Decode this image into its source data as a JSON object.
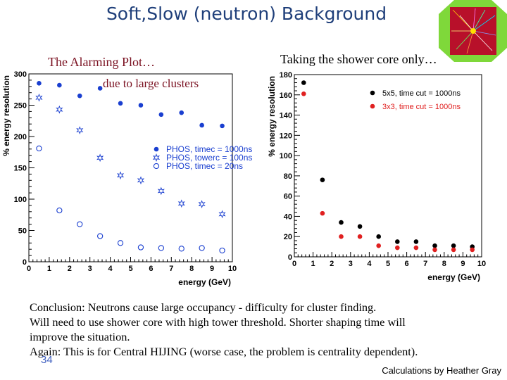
{
  "slide": {
    "title": "Soft,Slow (neutron) Background",
    "left_caption_1": "The Alarming Plot…",
    "left_caption_2": "due to large clusters",
    "right_caption": "Taking the shower core only…",
    "conclusion_lines": [
      "Conclusion: Neutrons cause large occupancy - difficulty for cluster finding.",
      "Will need to use shower core with high tower threshold. Shorter shaping time will",
      "improve the situation.",
      "Again: This is for Central HIJING (worse case, the problem is centrality dependent)."
    ],
    "slide_number": "34",
    "credit": "Calculations by Heather Gray",
    "logo_icon": "event-display-logo-icon"
  },
  "chart_data": [
    {
      "type": "scatter",
      "xlabel": "energy (GeV)",
      "ylabel": "% energy resolution",
      "xlim": [
        0,
        10
      ],
      "ylim": [
        0,
        300
      ],
      "x_ticks": [
        0,
        1,
        2,
        3,
        4,
        5,
        6,
        7,
        8,
        9,
        10
      ],
      "y_ticks": [
        0,
        50,
        100,
        150,
        200,
        250,
        300
      ],
      "legend_position": "center-right",
      "series": [
        {
          "name": "PHOS, timec = 1000ns",
          "marker": "filled-circle",
          "color": "#1a3fd0",
          "x": [
            0.5,
            1.5,
            2.5,
            3.5,
            4.5,
            5.5,
            6.5,
            7.5,
            8.5,
            9.5
          ],
          "y": [
            285,
            282,
            265,
            277,
            253,
            250,
            235,
            238,
            218,
            217
          ]
        },
        {
          "name": "PHOS, towerc = 100ns",
          "marker": "open-star",
          "color": "#1a3fd0",
          "x": [
            0.5,
            1.5,
            2.5,
            3.5,
            4.5,
            5.5,
            6.5,
            7.5,
            8.5,
            9.5
          ],
          "y": [
            262,
            243,
            210,
            166,
            138,
            130,
            113,
            93,
            92,
            76
          ]
        },
        {
          "name": "PHOS, timec = 20ns",
          "marker": "open-circle",
          "color": "#1a3fd0",
          "x": [
            0.5,
            1.5,
            2.5,
            3.5,
            4.5,
            5.5,
            6.5,
            7.5,
            8.5,
            9.5
          ],
          "y": [
            181,
            82,
            60,
            41,
            30,
            23,
            22,
            21,
            22,
            18
          ]
        }
      ]
    },
    {
      "type": "scatter",
      "xlabel": "energy (GeV)",
      "ylabel": "% energy resolution",
      "xlim": [
        0,
        10
      ],
      "ylim": [
        0,
        180
      ],
      "x_ticks": [
        0,
        1,
        2,
        3,
        4,
        5,
        6,
        7,
        8,
        9,
        10
      ],
      "y_ticks": [
        0,
        20,
        40,
        60,
        80,
        100,
        120,
        140,
        160,
        180
      ],
      "legend_position": "top-right",
      "series": [
        {
          "name": "5x5, time cut = 1000ns",
          "marker": "filled-circle",
          "color": "#000000",
          "x": [
            0.5,
            1.5,
            2.5,
            3.5,
            4.5,
            5.5,
            6.5,
            7.5,
            8.5,
            9.5
          ],
          "y": [
            172,
            76,
            34,
            30,
            20,
            15,
            15,
            11,
            11,
            10
          ]
        },
        {
          "name": "3x3, time cut = 1000ns",
          "marker": "filled-circle",
          "color": "#e02020",
          "x": [
            0.5,
            1.5,
            2.5,
            3.5,
            4.5,
            5.5,
            6.5,
            7.5,
            8.5,
            9.5
          ],
          "y": [
            161,
            43,
            20,
            20,
            11,
            9,
            9,
            7,
            7,
            7
          ]
        }
      ]
    }
  ]
}
